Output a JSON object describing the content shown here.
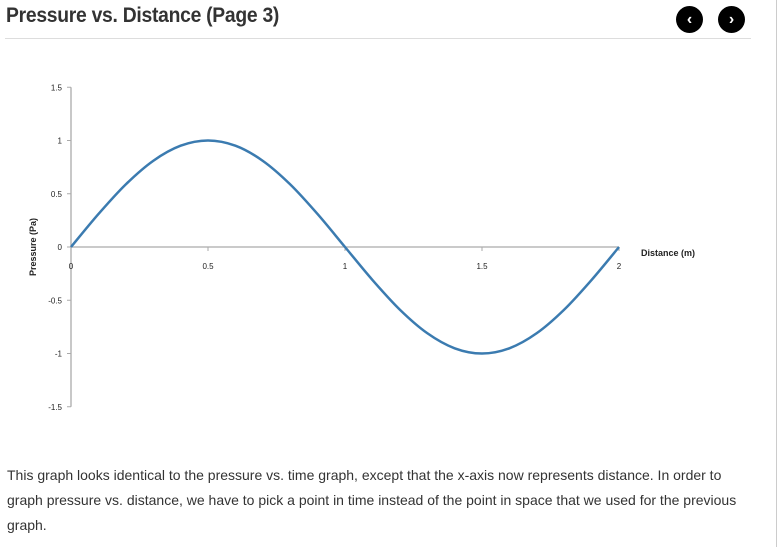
{
  "header": {
    "title": "Pressure vs. Distance (Page 3)",
    "prev_icon": "chevron-left-icon",
    "next_icon": "chevron-right-icon",
    "prev_glyph": "‹",
    "next_glyph": "›"
  },
  "chart_data": {
    "type": "line",
    "title": "",
    "xlabel": "Distance (m)",
    "ylabel": "Pressure (Pa)",
    "xlim": [
      0,
      2
    ],
    "ylim": [
      -1.5,
      1.5
    ],
    "xticks": [
      "0",
      "0.5",
      "1",
      "1.5",
      "2"
    ],
    "yticks": [
      "1.5",
      "1",
      "0.5",
      "0",
      "-0.5",
      "-1",
      "-1.5"
    ],
    "grid": false,
    "color": "#3b7bb0",
    "x": [
      0,
      0.1,
      0.2,
      0.3,
      0.4,
      0.5,
      0.6,
      0.7,
      0.8,
      0.9,
      1,
      1.1,
      1.2,
      1.3,
      1.4,
      1.5,
      1.6,
      1.7,
      1.8,
      1.9,
      2
    ],
    "y": [
      0,
      0.309,
      0.588,
      0.809,
      0.951,
      1,
      0.951,
      0.809,
      0.588,
      0.309,
      0,
      -0.309,
      -0.588,
      -0.809,
      -0.951,
      -1,
      -0.951,
      -0.809,
      -0.588,
      -0.309,
      0
    ]
  },
  "description": "This graph looks identical to the pressure vs. time graph, except that the x-axis now represents distance. In order to graph pressure vs. distance, we have to pick a point in time instead of the point in space that we used for the previous graph."
}
